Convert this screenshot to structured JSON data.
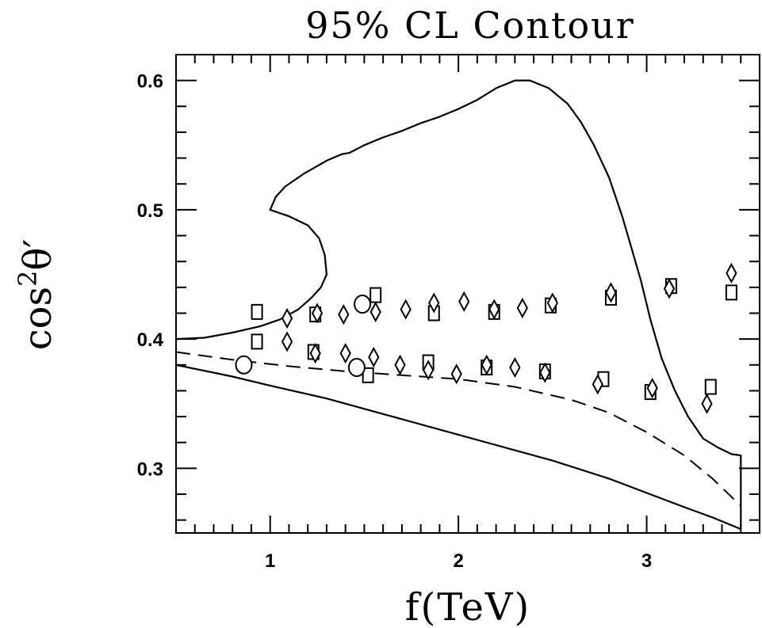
{
  "chart_data": {
    "type": "scatter",
    "title": "95% CL Contour",
    "xlabel_main": "f(TeV)",
    "ylabel": {
      "base": "cos",
      "superscript": "2",
      "symbol": "θ′"
    },
    "xlim": [
      0.5,
      3.6
    ],
    "ylim": [
      0.25,
      0.62
    ],
    "x_ticks": [
      1,
      2,
      3
    ],
    "y_ticks": [
      0.3,
      0.4,
      0.5,
      0.6
    ],
    "x_tick_labels": [
      "1",
      "2",
      "3"
    ],
    "y_tick_labels": [
      "0.3",
      "0.4",
      "0.5",
      "0.6"
    ],
    "series": [
      {
        "style": "solid",
        "points": [
          [
            0.5,
            0.4
          ],
          [
            0.65,
            0.401
          ],
          [
            0.8,
            0.405
          ],
          [
            0.95,
            0.41
          ],
          [
            1.05,
            0.415
          ],
          [
            1.15,
            0.423
          ],
          [
            1.22,
            0.432
          ],
          [
            1.27,
            0.44
          ],
          [
            1.3,
            0.45
          ],
          [
            1.29,
            0.465
          ],
          [
            1.26,
            0.478
          ],
          [
            1.2,
            0.488
          ],
          [
            1.1,
            0.495
          ],
          [
            1.0,
            0.5
          ],
          [
            1.03,
            0.51
          ],
          [
            1.08,
            0.518
          ],
          [
            1.18,
            0.528
          ],
          [
            1.3,
            0.538
          ],
          [
            1.38,
            0.543
          ],
          [
            1.42,
            0.544
          ],
          [
            1.5,
            0.55
          ],
          [
            1.6,
            0.556
          ],
          [
            1.7,
            0.561
          ],
          [
            1.8,
            0.567
          ],
          [
            1.9,
            0.572
          ],
          [
            2.0,
            0.578
          ],
          [
            2.1,
            0.585
          ],
          [
            2.2,
            0.594
          ],
          [
            2.3,
            0.6
          ],
          [
            2.38,
            0.6
          ],
          [
            2.48,
            0.594
          ],
          [
            2.58,
            0.582
          ],
          [
            2.65,
            0.568
          ],
          [
            2.72,
            0.55
          ],
          [
            2.8,
            0.525
          ],
          [
            2.87,
            0.495
          ],
          [
            2.92,
            0.47
          ],
          [
            2.97,
            0.445
          ],
          [
            3.02,
            0.415
          ],
          [
            3.08,
            0.385
          ],
          [
            3.15,
            0.36
          ],
          [
            3.22,
            0.34
          ],
          [
            3.3,
            0.323
          ],
          [
            3.38,
            0.316
          ],
          [
            3.45,
            0.311
          ],
          [
            3.5,
            0.31
          ],
          [
            3.5,
            0.27
          ],
          [
            3.5,
            0.253
          ]
        ]
      },
      {
        "style": "solid",
        "points": [
          [
            0.5,
            0.38
          ],
          [
            0.8,
            0.371
          ],
          [
            1.0,
            0.364
          ],
          [
            1.3,
            0.354
          ],
          [
            1.6,
            0.342
          ],
          [
            1.9,
            0.33
          ],
          [
            2.2,
            0.318
          ],
          [
            2.5,
            0.306
          ],
          [
            2.8,
            0.292
          ],
          [
            3.0,
            0.281
          ],
          [
            3.2,
            0.27
          ],
          [
            3.35,
            0.262
          ],
          [
            3.5,
            0.253
          ]
        ]
      },
      {
        "style": "dashed",
        "points": [
          [
            0.5,
            0.39
          ],
          [
            0.8,
            0.384
          ],
          [
            1.1,
            0.379
          ],
          [
            1.4,
            0.375
          ],
          [
            1.7,
            0.372
          ],
          [
            2.0,
            0.369
          ],
          [
            2.3,
            0.363
          ],
          [
            2.6,
            0.353
          ],
          [
            2.8,
            0.343
          ],
          [
            3.0,
            0.328
          ],
          [
            3.2,
            0.31
          ],
          [
            3.35,
            0.292
          ],
          [
            3.5,
            0.271
          ]
        ]
      },
      {
        "marker": "square",
        "points": [
          [
            0.93,
            0.421
          ],
          [
            1.24,
            0.419
          ],
          [
            1.56,
            0.434
          ],
          [
            1.87,
            0.42
          ],
          [
            2.19,
            0.421
          ],
          [
            2.49,
            0.426
          ],
          [
            2.81,
            0.432
          ],
          [
            3.13,
            0.441
          ],
          [
            3.45,
            0.436
          ],
          [
            0.93,
            0.398
          ],
          [
            1.23,
            0.39
          ],
          [
            1.52,
            0.372
          ],
          [
            1.84,
            0.382
          ],
          [
            2.15,
            0.378
          ],
          [
            2.46,
            0.375
          ],
          [
            2.77,
            0.369
          ],
          [
            3.02,
            0.359
          ],
          [
            3.34,
            0.363
          ]
        ]
      },
      {
        "marker": "diamond",
        "points": [
          [
            1.09,
            0.416
          ],
          [
            1.25,
            0.42
          ],
          [
            1.39,
            0.419
          ],
          [
            1.56,
            0.421
          ],
          [
            1.72,
            0.423
          ],
          [
            1.87,
            0.428
          ],
          [
            2.03,
            0.429
          ],
          [
            2.19,
            0.423
          ],
          [
            2.34,
            0.424
          ],
          [
            2.5,
            0.428
          ],
          [
            2.81,
            0.436
          ],
          [
            3.12,
            0.439
          ],
          [
            3.45,
            0.451
          ],
          [
            1.09,
            0.398
          ],
          [
            1.24,
            0.389
          ],
          [
            1.4,
            0.389
          ],
          [
            1.55,
            0.386
          ],
          [
            1.69,
            0.38
          ],
          [
            1.84,
            0.376
          ],
          [
            1.99,
            0.373
          ],
          [
            2.15,
            0.38
          ],
          [
            2.3,
            0.378
          ],
          [
            2.46,
            0.374
          ],
          [
            2.74,
            0.365
          ],
          [
            3.03,
            0.362
          ],
          [
            3.32,
            0.35
          ]
        ]
      },
      {
        "marker": "circle",
        "points": [
          [
            0.86,
            0.38
          ],
          [
            1.49,
            0.427
          ],
          [
            1.46,
            0.378
          ]
        ]
      }
    ],
    "grid": false,
    "legend": "none"
  }
}
